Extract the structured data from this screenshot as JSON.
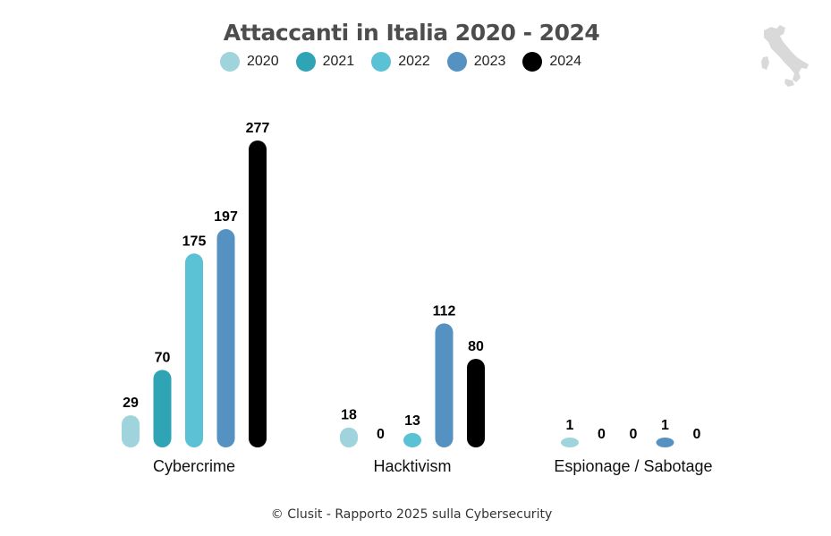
{
  "chart_data": {
    "type": "bar",
    "title": "Attaccanti in Italia 2020 - 2024",
    "categories": [
      "Cybercrime",
      "Hacktivism",
      "Espionage / Sabotage"
    ],
    "series": [
      {
        "name": "2020",
        "color": "#9fd4dc",
        "values": [
          29,
          18,
          1
        ]
      },
      {
        "name": "2021",
        "color": "#2fa4b5",
        "values": [
          70,
          0,
          0
        ]
      },
      {
        "name": "2022",
        "color": "#5ac2d4",
        "values": [
          175,
          13,
          0
        ]
      },
      {
        "name": "2023",
        "color": "#5592c1",
        "values": [
          197,
          112,
          1
        ]
      },
      {
        "name": "2024",
        "color": "#000000",
        "values": [
          277,
          80,
          0
        ]
      }
    ],
    "legend_position": "top",
    "grid": false
  },
  "footer": "© Clusit - Rapporto 2025 sulla Cybersecurity",
  "logo_icon": "italy-map-icon"
}
